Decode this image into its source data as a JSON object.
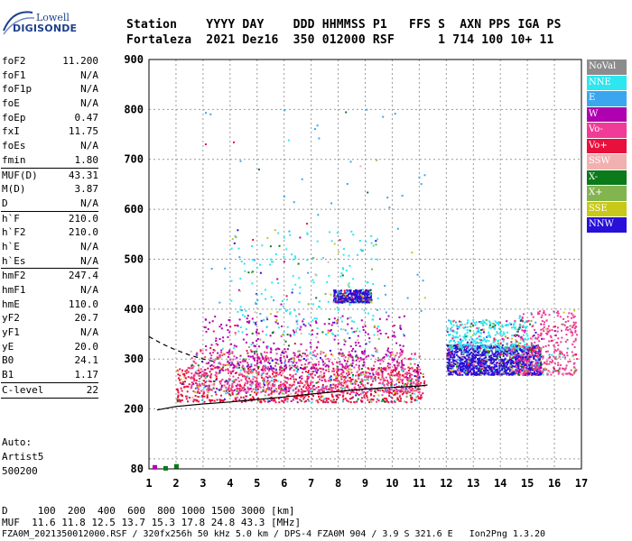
{
  "logo": {
    "brand": "Lowell",
    "name": "DIGISONDE"
  },
  "header": {
    "line1": "Station    YYYY DAY    DDD HHMMSS P1   FFS S  AXN PPS IGA PS",
    "line2": "Fortaleza  2021 Dez16  350 012000 RSF      1 714 100 10+ 11"
  },
  "params": [
    {
      "label": "foF2",
      "value": "11.200"
    },
    {
      "label": "foF1",
      "value": "N/A"
    },
    {
      "label": "foF1p",
      "value": "N/A"
    },
    {
      "label": "foE",
      "value": "N/A"
    },
    {
      "label": "foEp",
      "value": "0.47"
    },
    {
      "label": "fxI",
      "value": "11.75"
    },
    {
      "label": "foEs",
      "value": "N/A"
    },
    {
      "label": "fmin",
      "value": "1.80"
    },
    {
      "label": "MUF(D)",
      "value": "43.31"
    },
    {
      "label": "M(D)",
      "value": "3.87"
    },
    {
      "label": "D",
      "value": "N/A"
    },
    {
      "label": "h`F",
      "value": "210.0"
    },
    {
      "label": "h`F2",
      "value": "210.0"
    },
    {
      "label": "h`E",
      "value": "N/A"
    },
    {
      "label": "h`Es",
      "value": "N/A"
    },
    {
      "label": "hmF2",
      "value": "247.4"
    },
    {
      "label": "hmF1",
      "value": "N/A"
    },
    {
      "label": "hmE",
      "value": "110.0"
    },
    {
      "label": "yF2",
      "value": "20.7"
    },
    {
      "label": "yF1",
      "value": "N/A"
    },
    {
      "label": "yE",
      "value": "20.0"
    },
    {
      "label": "B0",
      "value": "24.1"
    },
    {
      "label": "B1",
      "value": "1.17"
    },
    {
      "label": "C-level",
      "value": "22"
    }
  ],
  "auto": {
    "line1": "Auto:",
    "line2": "Artist5",
    "line3": "500200"
  },
  "legend": [
    {
      "label": "NoVal",
      "color": "#8c8c8c"
    },
    {
      "label": "NNE",
      "color": "#2ee6f0"
    },
    {
      "label": "E",
      "color": "#3aa6f0"
    },
    {
      "label": "W",
      "color": "#b000b0"
    },
    {
      "label": "Vo-",
      "color": "#f03c96"
    },
    {
      "label": "Vo+",
      "color": "#e8103c"
    },
    {
      "label": "SSW",
      "color": "#f2b0b0"
    },
    {
      "label": "X-",
      "color": "#0a7a1a"
    },
    {
      "label": "X+",
      "color": "#82b450"
    },
    {
      "label": "SSE",
      "color": "#c8c81a"
    },
    {
      "label": "NNW",
      "color": "#2810d8"
    }
  ],
  "footer": {
    "line1": "D     100  200  400  600  800 1000 1500 3000 [km]",
    "line2": "MUF  11.6 11.8 12.5 13.7 15.3 17.8 24.8 43.3 [MHz]",
    "line3": "FZA0M_2021350012000.RSF / 320fx256h 50 kHz 5.0 km / DPS-4 FZA0M 904 / 3.9 S 321.6 E   Ion2Png 1.3.20"
  },
  "chart_data": {
    "type": "scatter",
    "title": "",
    "xlabel": "",
    "ylabel": "",
    "xlim": [
      1,
      17
    ],
    "ylim": [
      80,
      900
    ],
    "xticks": [
      1,
      2,
      3,
      4,
      5,
      6,
      7,
      8,
      9,
      10,
      11,
      12,
      13,
      14,
      15,
      16,
      17
    ],
    "yticks": [
      80,
      100,
      200,
      300,
      400,
      500,
      600,
      700,
      800,
      900
    ],
    "ytick_labels": [
      "80",
      "",
      "200",
      "300",
      "400",
      "500",
      "600",
      "700",
      "800",
      "900"
    ],
    "dashed_gridlines": true,
    "legend_position": "right",
    "trace_curve": {
      "x": [
        1.3,
        2,
        3,
        4,
        5,
        6,
        7,
        8,
        9,
        10,
        11,
        11.3
      ],
      "y": [
        198,
        205,
        210,
        214,
        219,
        224,
        230,
        235,
        240,
        243,
        246,
        248
      ]
    },
    "dashed_curve": {
      "x": [
        1,
        1.5,
        2,
        2.5,
        3,
        3.5
      ],
      "y": [
        345,
        330,
        318,
        308,
        300,
        294
      ]
    },
    "echo_regions": [
      {
        "name": "F-trace",
        "class": "Vo+",
        "x": [
          2.0,
          11.2
        ],
        "y": [
          215,
          285
        ],
        "density": "high"
      },
      {
        "name": "F-spread-low",
        "class": "Vo-",
        "x": [
          2.5,
          11.0
        ],
        "y": [
          235,
          320
        ],
        "density": "high"
      },
      {
        "name": "F-spread-mid",
        "class": "W",
        "x": [
          3.0,
          10.5
        ],
        "y": [
          280,
          390
        ],
        "density": "medium"
      },
      {
        "name": "F-spread-high",
        "class": "NNE",
        "x": [
          4.0,
          9.5
        ],
        "y": [
          350,
          560
        ],
        "density": "low"
      },
      {
        "name": "O-mode-patch",
        "class": "NNW",
        "x": [
          7.8,
          9.2
        ],
        "y": [
          415,
          440
        ],
        "density": "medium"
      },
      {
        "name": "range-spread-1",
        "class": "NNW",
        "x": [
          12.0,
          15.5
        ],
        "y": [
          270,
          330
        ],
        "density": "very-high"
      },
      {
        "name": "range-spread-2",
        "class": "NNE",
        "x": [
          12.0,
          15.0
        ],
        "y": [
          320,
          380
        ],
        "density": "medium"
      },
      {
        "name": "range-spread-3",
        "class": "Vo-",
        "x": [
          14.5,
          16.8
        ],
        "y": [
          270,
          400
        ],
        "density": "medium"
      },
      {
        "name": "scattered",
        "class": "E",
        "x": [
          3.0,
          11.5
        ],
        "y": [
          390,
          830
        ],
        "density": "very-low"
      }
    ],
    "isolated_echoes": [
      {
        "class": "X-",
        "x": 2.0,
        "y": 86
      },
      {
        "class": "W",
        "x": 1.2,
        "y": 84
      },
      {
        "class": "X-",
        "x": 1.6,
        "y": 82
      }
    ]
  }
}
